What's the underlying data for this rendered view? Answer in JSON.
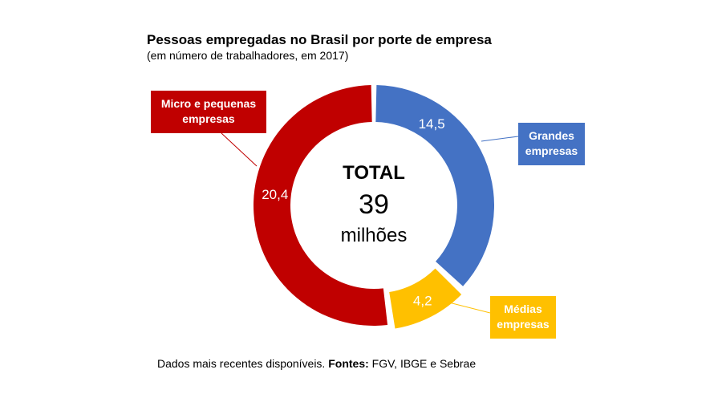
{
  "chart_data": {
    "type": "pie",
    "title": "Pessoas empregadas no Brasil por porte de empresa",
    "subtitle": "(em número de trabalhadores, em 2017)",
    "center": {
      "label": "TOTAL",
      "value": "39",
      "unit": "milhões"
    },
    "slices": [
      {
        "name": "Grandes empresas",
        "label_lines": [
          "Grandes",
          "empresas"
        ],
        "value": 14.5,
        "display": "14,5",
        "color": "#4472C4"
      },
      {
        "name": "Médias empresas",
        "label_lines": [
          "Médias",
          "empresas"
        ],
        "value": 4.2,
        "display": "4,2",
        "color": "#FFC000"
      },
      {
        "name": "Micro e pequenas empresas",
        "label_lines": [
          "Micro e pequenas",
          "empresas"
        ],
        "value": 20.4,
        "display": "20,4",
        "color": "#C00000"
      }
    ]
  },
  "footer": {
    "text": "Dados mais recentes disponíveis. ",
    "sources_label": "Fontes:",
    "sources": " FGV, IBGE e Sebrae"
  }
}
